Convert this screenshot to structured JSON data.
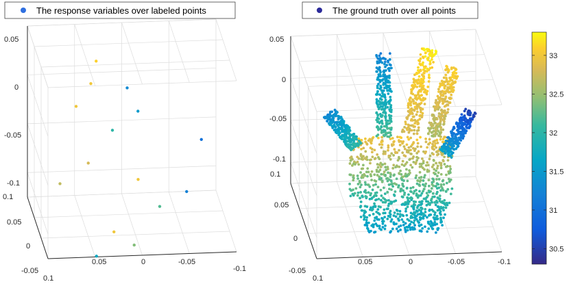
{
  "chart_data": [
    {
      "type": "scatter3d",
      "legend": "The response variables over labeled points",
      "legend_marker_color": "#2f6fe0",
      "colormap": "parula",
      "color_range": [
        30.3,
        33.3
      ],
      "axes": {
        "x_ticks": [
          "0.1",
          "0.05",
          "0",
          "-0.05",
          "-0.1"
        ],
        "y_ticks": [
          "-0.05",
          "0",
          "0.05",
          "0.1"
        ],
        "z_ticks": [
          "0.05",
          "0",
          "-0.05",
          "-0.1"
        ]
      },
      "points": [
        {
          "x": 0.03,
          "y": 0.08,
          "z": 0.02,
          "c": 33.1
        },
        {
          "x": 0.0,
          "y": 0.06,
          "z": 0.0,
          "c": 31.3
        },
        {
          "x": -0.01,
          "y": 0.05,
          "z": -0.02,
          "c": 31.5
        },
        {
          "x": 0.04,
          "y": 0.05,
          "z": 0.01,
          "c": 33.0
        },
        {
          "x": 0.06,
          "y": 0.02,
          "z": 0.0,
          "c": 33.0
        },
        {
          "x": 0.02,
          "y": 0.03,
          "z": -0.03,
          "c": 32.0
        },
        {
          "x": 0.05,
          "y": 0.0,
          "z": -0.05,
          "c": 32.8
        },
        {
          "x": 0.0,
          "y": -0.02,
          "z": -0.06,
          "c": 33.0
        },
        {
          "x": -0.05,
          "y": -0.03,
          "z": -0.07,
          "c": 31.2
        },
        {
          "x": -0.07,
          "y": 0.0,
          "z": -0.03,
          "c": 31.0
        },
        {
          "x": -0.02,
          "y": -0.04,
          "z": -0.08,
          "c": 32.2
        },
        {
          "x": 0.08,
          "y": 0.0,
          "z": -0.07,
          "c": 32.7
        },
        {
          "x": 0.03,
          "y": -0.05,
          "z": -0.1,
          "c": 33.0
        },
        {
          "x": 0.01,
          "y": -0.06,
          "z": -0.11,
          "c": 32.4
        },
        {
          "x": 0.05,
          "y": -0.06,
          "z": -0.12,
          "c": 31.7
        }
      ]
    },
    {
      "type": "scatter3d",
      "legend": "The ground truth over all points",
      "legend_marker_color": "#2b2a9a",
      "colormap": "parula",
      "color_range": [
        30.3,
        33.3
      ],
      "axes": {
        "x_ticks": [
          "0.1",
          "0.05",
          "0",
          "-0.05",
          "-0.1"
        ],
        "y_ticks": [
          "-0.05",
          "0",
          "0.05",
          "0.1"
        ],
        "z_ticks": [
          "0.05",
          "0",
          "-0.05",
          "-0.1"
        ]
      },
      "shape": "dense point cloud of a hand (palm and five fingers)",
      "fingers": [
        {
          "name": "thumb",
          "c_tip": 31.3,
          "c_base": 32.0
        },
        {
          "name": "index",
          "c_tip": 31.2,
          "c_base": 32.2
        },
        {
          "name": "middle",
          "c_tip": 33.2,
          "c_base": 32.8
        },
        {
          "name": "ring",
          "c_tip": 33.1,
          "c_base": 32.6
        },
        {
          "name": "little",
          "c_tip": 30.5,
          "c_base": 31.6
        }
      ],
      "palm": {
        "c_top": 33.0,
        "c_bottom": 31.5
      }
    }
  ],
  "colorbar": {
    "tick_labels": [
      "33",
      "32.5",
      "32",
      "31.5",
      "31",
      "30.5"
    ],
    "tick_values": [
      33,
      32.5,
      32,
      31.5,
      31,
      30.5
    ],
    "range": [
      30.3,
      33.3
    ]
  }
}
